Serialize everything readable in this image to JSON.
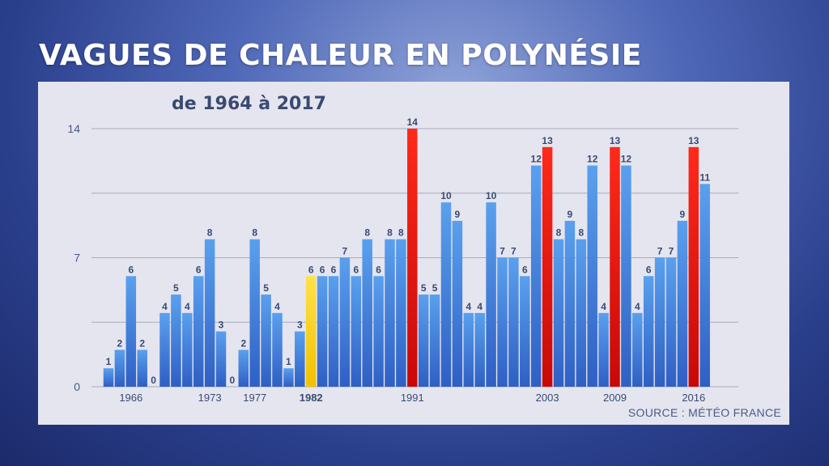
{
  "title": "VAGUES DE CHALEUR EN POLYNÉSIE",
  "subtitle": "de 1964 à 2017",
  "source": "SOURCE : MÉTÉO FRANCE",
  "colors": {
    "normal": "#3f7fd6",
    "highlight_1982": "#ffd21a",
    "record": "#e01010",
    "text": "#3a4a72"
  },
  "chart_data": {
    "type": "bar",
    "title": "de 1964 à 2017",
    "xlabel": "",
    "ylabel": "",
    "ylim": [
      0,
      14
    ],
    "yticks": [
      "0",
      "7",
      "14"
    ],
    "grid": true,
    "categories": [
      1964,
      1965,
      1966,
      1967,
      1968,
      1969,
      1970,
      1971,
      1972,
      1973,
      1974,
      1975,
      1976,
      1977,
      1978,
      1979,
      1980,
      1981,
      1982,
      1983,
      1984,
      1985,
      1986,
      1987,
      1988,
      1989,
      1990,
      1991,
      1992,
      1993,
      1994,
      1995,
      1996,
      1997,
      1998,
      1999,
      2000,
      2001,
      2002,
      2003,
      2004,
      2005,
      2006,
      2007,
      2008,
      2009,
      2010,
      2011,
      2012,
      2013,
      2014,
      2015,
      2016,
      2017
    ],
    "values": [
      1,
      2,
      6,
      2,
      0,
      4,
      5,
      4,
      6,
      8,
      3,
      0,
      2,
      8,
      5,
      4,
      1,
      3,
      6,
      6,
      6,
      7,
      6,
      8,
      6,
      8,
      8,
      14,
      5,
      5,
      10,
      9,
      4,
      4,
      10,
      7,
      7,
      6,
      12,
      13,
      8,
      9,
      8,
      12,
      4,
      13,
      12,
      4,
      6,
      7,
      7,
      9,
      13,
      11
    ],
    "bar_types": [
      "normal",
      "normal",
      "normal",
      "normal",
      "normal",
      "normal",
      "normal",
      "normal",
      "normal",
      "normal",
      "normal",
      "normal",
      "normal",
      "normal",
      "normal",
      "normal",
      "normal",
      "normal",
      "highlight_1982",
      "normal",
      "normal",
      "normal",
      "normal",
      "normal",
      "normal",
      "normal",
      "normal",
      "record",
      "normal",
      "normal",
      "normal",
      "normal",
      "normal",
      "normal",
      "normal",
      "normal",
      "normal",
      "normal",
      "normal",
      "record",
      "normal",
      "normal",
      "normal",
      "normal",
      "normal",
      "record",
      "normal",
      "normal",
      "normal",
      "normal",
      "normal",
      "normal",
      "record",
      "normal"
    ],
    "x_tick_labels": [
      "1966",
      "1973",
      "1977",
      "1982",
      "1991",
      "2003",
      "2009",
      "2016"
    ]
  }
}
